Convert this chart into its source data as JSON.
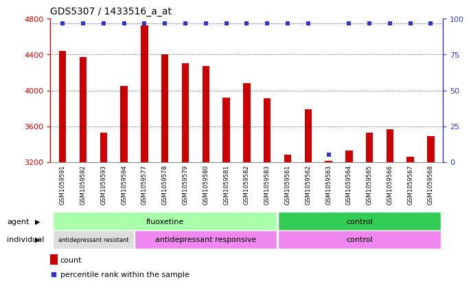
{
  "title": "GDS5307 / 1433516_a_at",
  "samples": [
    "GSM1059591",
    "GSM1059592",
    "GSM1059593",
    "GSM1059594",
    "GSM1059577",
    "GSM1059578",
    "GSM1059579",
    "GSM1059580",
    "GSM1059581",
    "GSM1059582",
    "GSM1059583",
    "GSM1059561",
    "GSM1059562",
    "GSM1059563",
    "GSM1059564",
    "GSM1059565",
    "GSM1059566",
    "GSM1059567",
    "GSM1059568"
  ],
  "counts": [
    4440,
    4370,
    3530,
    4050,
    4730,
    4400,
    4300,
    4270,
    3920,
    4080,
    3910,
    3280,
    3790,
    3210,
    3330,
    3530,
    3570,
    3260,
    3490
  ],
  "percentiles": [
    100,
    100,
    100,
    100,
    100,
    100,
    100,
    100,
    100,
    100,
    100,
    100,
    100,
    5,
    100,
    100,
    100,
    100,
    100
  ],
  "bar_color": "#cc0000",
  "percentile_color": "#3333cc",
  "ylim_left": [
    3200,
    4800
  ],
  "ylim_right": [
    0,
    100
  ],
  "yticks_left": [
    3200,
    3600,
    4000,
    4400,
    4800
  ],
  "yticks_right": [
    0,
    25,
    50,
    75,
    100
  ],
  "grid_values": [
    3600,
    4000,
    4400
  ],
  "agent_groups": [
    {
      "label": "fluoxetine",
      "start": 0,
      "end": 11,
      "color": "#aaffaa"
    },
    {
      "label": "control",
      "start": 11,
      "end": 19,
      "color": "#33cc55"
    }
  ],
  "individual_groups": [
    {
      "label": "antidepressant resistant",
      "start": 0,
      "end": 4,
      "color": "#dddddd"
    },
    {
      "label": "antidepressant responsive",
      "start": 4,
      "end": 11,
      "color": "#ee88ee"
    },
    {
      "label": "control",
      "start": 11,
      "end": 19,
      "color": "#ee88ee"
    }
  ],
  "legend_items": [
    {
      "color": "#cc0000",
      "label": "count"
    },
    {
      "color": "#3333cc",
      "label": "percentile rank within the sample"
    }
  ],
  "title_fontsize": 10,
  "axis_label_color_left": "#cc0000",
  "axis_label_color_right": "#3333cc"
}
